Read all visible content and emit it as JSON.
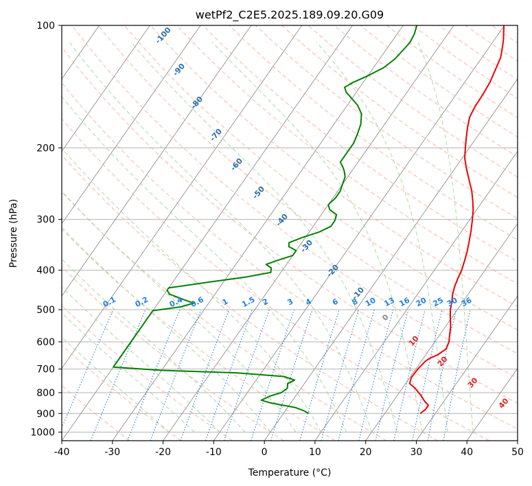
{
  "chart_data": {
    "type": "line",
    "title": "wetPf2_C2E5.2025.189.09.20.G09",
    "xlabel": "Temperature (°C)",
    "ylabel": "Pressure (hPa)",
    "xlim": [
      -40,
      50
    ],
    "ylim": [
      1050,
      100
    ],
    "y_scale": "log",
    "x_ticks": [
      "-40",
      "-30",
      "-20",
      "-10",
      "0",
      "10",
      "20",
      "30",
      "40",
      "50"
    ],
    "y_ticks": [
      "100",
      "200",
      "300",
      "400",
      "500",
      "600",
      "700",
      "800",
      "900",
      "1000"
    ],
    "grid": true,
    "series": [
      {
        "color": "#ee0000",
        "points": [
          [
            27,
            900
          ],
          [
            27.5,
            880
          ],
          [
            27.5,
            860
          ],
          [
            26.2,
            840
          ],
          [
            24.5,
            810
          ],
          [
            22.5,
            780
          ],
          [
            20.8,
            760
          ],
          [
            20.3,
            735
          ],
          [
            20.4,
            700
          ],
          [
            20.8,
            670
          ],
          [
            21.2,
            660
          ],
          [
            22.4,
            645
          ],
          [
            23.2,
            625
          ],
          [
            22.8,
            600
          ],
          [
            21.9,
            575
          ],
          [
            21.0,
            550
          ],
          [
            19.8,
            525
          ],
          [
            18.6,
            500
          ],
          [
            17.9,
            480
          ],
          [
            17.0,
            460
          ],
          [
            16.3,
            440
          ],
          [
            15.8,
            420
          ],
          [
            15.4,
            400
          ],
          [
            14.7,
            380
          ],
          [
            13.9,
            360
          ],
          [
            12.9,
            340
          ],
          [
            11.8,
            320
          ],
          [
            10.5,
            300
          ],
          [
            9.4,
            285
          ],
          [
            8.0,
            270
          ],
          [
            6.4,
            255
          ],
          [
            4.4,
            240
          ],
          [
            2.3,
            225
          ],
          [
            0.5,
            212
          ],
          [
            -0.8,
            200
          ],
          [
            -2.1,
            188
          ],
          [
            -3.2,
            178
          ],
          [
            -4.2,
            168
          ],
          [
            -4.6,
            158
          ],
          [
            -4.7,
            148
          ],
          [
            -5.0,
            138
          ],
          [
            -5.7,
            128
          ],
          [
            -6.3,
            120
          ],
          [
            -7.4,
            113
          ],
          [
            -8.3,
            108
          ],
          [
            -9.2,
            104
          ],
          [
            -10.1,
            100
          ]
        ]
      },
      {
        "color": "#008000",
        "points": [
          [
            5,
            900
          ],
          [
            3.5,
            885
          ],
          [
            1.5,
            870
          ],
          [
            -1,
            860
          ],
          [
            -4,
            848
          ],
          [
            -6.2,
            835
          ],
          [
            -5.0,
            815
          ],
          [
            -3.3,
            800
          ],
          [
            -2.7,
            780
          ],
          [
            -3.3,
            760
          ],
          [
            -2.4,
            745
          ],
          [
            -5,
            730
          ],
          [
            -15,
            715
          ],
          [
            -30,
            705
          ],
          [
            -40,
            692
          ],
          [
            -40,
            503
          ],
          [
            -35,
            492
          ],
          [
            -33,
            482
          ],
          [
            -36,
            470
          ],
          [
            -39,
            458
          ],
          [
            -40,
            448
          ],
          [
            -40,
            442
          ],
          [
            -33,
            428
          ],
          [
            -26,
            415
          ],
          [
            -22,
            405
          ],
          [
            -22.5,
            395
          ],
          [
            -24,
            387
          ],
          [
            -22.5,
            379
          ],
          [
            -20,
            368
          ],
          [
            -20,
            358
          ],
          [
            -22,
            350
          ],
          [
            -22.5,
            342
          ],
          [
            -20.5,
            332
          ],
          [
            -18,
            322
          ],
          [
            -16.5,
            312
          ],
          [
            -16.5,
            302
          ],
          [
            -17,
            292
          ],
          [
            -19,
            284
          ],
          [
            -20,
            276
          ],
          [
            -19.5,
            266
          ],
          [
            -19.5,
            256
          ],
          [
            -20,
            246
          ],
          [
            -20.5,
            236
          ],
          [
            -21.5,
            228
          ],
          [
            -22.5,
            222
          ],
          [
            -23.5,
            217
          ],
          [
            -23.5,
            212
          ],
          [
            -23.5,
            205
          ],
          [
            -23.5,
            195
          ],
          [
            -24,
            185
          ],
          [
            -24.7,
            175
          ],
          [
            -26,
            165
          ],
          [
            -28,
            157
          ],
          [
            -30.5,
            150
          ],
          [
            -32,
            146
          ],
          [
            -33,
            142
          ],
          [
            -32,
            138
          ],
          [
            -30,
            133
          ],
          [
            -28,
            127
          ],
          [
            -27,
            121
          ],
          [
            -26.6,
            115
          ],
          [
            -26.3,
            110
          ],
          [
            -26.6,
            105
          ],
          [
            -27.3,
            100
          ]
        ]
      }
    ],
    "dry_adiabat_labels": [
      "-100",
      "-90",
      "-80",
      "-70",
      "-60",
      "-50",
      "-40",
      "-30",
      "-20",
      "-10",
      "0",
      "10",
      "20",
      "30",
      "40"
    ],
    "mixing_ratio_labels": [
      "0.1",
      "0.2",
      "0.4",
      "0.6",
      "1",
      "1.5",
      "2",
      "3",
      "4",
      "6",
      "8",
      "10",
      "13",
      "16",
      "20",
      "25",
      "30",
      "36"
    ],
    "colors": {
      "temperature": "#ee0000",
      "dewpoint": "#008000",
      "isotherm": "#999999",
      "dry_adiabat": "#f7a48a",
      "moist_adiabat": "#9fd59f",
      "mixing_ratio": "#1f7fe0",
      "label_blue": "#2a6fa8",
      "label_red": "#d62728"
    }
  }
}
